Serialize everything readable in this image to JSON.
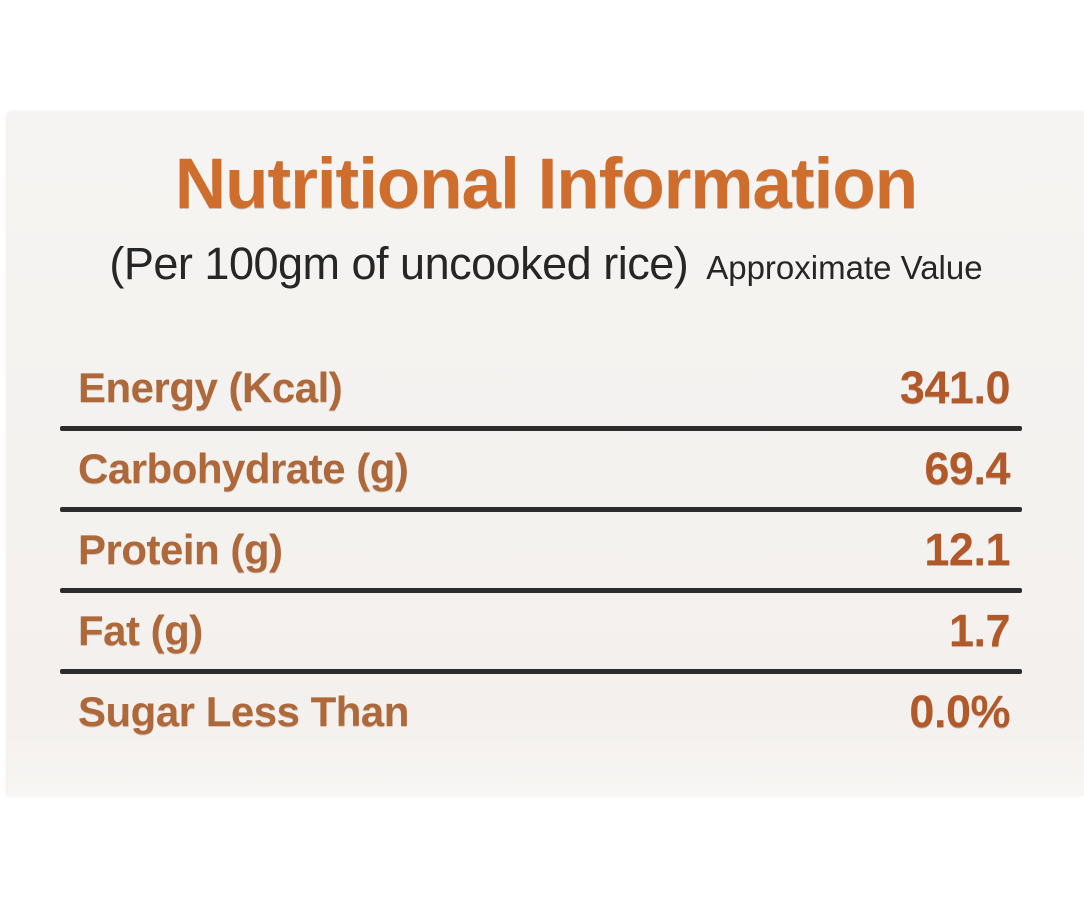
{
  "label": {
    "title": "Nutritional Information",
    "subtitle": "(Per 100gm of uncooked rice)",
    "subtitle_note": "Approximate Value",
    "rows": [
      {
        "name": "Energy (Kcal)",
        "value": "341.0"
      },
      {
        "name": "Carbohydrate (g)",
        "value": "69.4"
      },
      {
        "name": "Protein (g)",
        "value": "12.1"
      },
      {
        "name": "Fat (g)",
        "value": "1.7"
      },
      {
        "name": "Sugar Less Than",
        "value": "0.0%"
      }
    ],
    "colors": {
      "title_orange": "#cf6e2c",
      "row_label_orange": "#ae683a",
      "row_value_orange": "#b2592a",
      "text_dark": "#262626",
      "divider_dark": "#2c2c2c",
      "card_background": "#f4f2ef"
    }
  }
}
